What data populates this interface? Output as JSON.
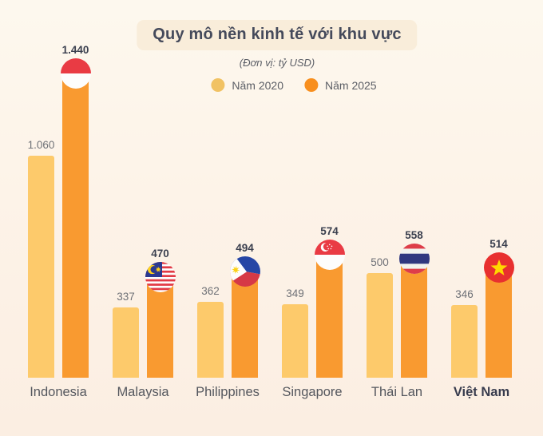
{
  "header": {
    "title": "Quy mô nền kinh tế với khu vực",
    "subtitle": "(Đơn vị: tỷ USD)"
  },
  "palette": {
    "background_top": "#fdf8ee",
    "background_bottom": "#fbeee2",
    "title_pill_bg": "#f9edda",
    "title_text": "#454a5b",
    "bar_2020": "#fdca6b",
    "bar_2025": "#f99a30",
    "legend_2020": "#f1c263",
    "legend_2025": "#f88f1e",
    "value_2020_text": "#6e7177",
    "value_2025_text": "#3a3f4e",
    "axis_label": "#54575e",
    "axis_label_highlight": "#383c4e"
  },
  "chart_data": {
    "type": "bar",
    "title": "Quy mô nền kinh tế với khu vực",
    "unit_label": "(Đơn vị: tỷ USD)",
    "categories": [
      "Indonesia",
      "Malaysia",
      "Philippines",
      "Singapore",
      "Thái Lan",
      "Việt Nam"
    ],
    "series": [
      {
        "name": "Năm 2020",
        "color": "#fdca6b",
        "values": [
          1060,
          337,
          362,
          349,
          500,
          346
        ],
        "labels": [
          "1.060",
          "337",
          "362",
          "349",
          "500",
          "346"
        ]
      },
      {
        "name": "Năm 2025",
        "color": "#f99a30",
        "values": [
          1440,
          470,
          494,
          574,
          558,
          514
        ],
        "labels": [
          "1.440",
          "470",
          "494",
          "574",
          "558",
          "514"
        ]
      }
    ],
    "flags": [
      "indonesia",
      "malaysia",
      "philippines",
      "singapore",
      "thailand",
      "vietnam"
    ],
    "highlight_category": "Việt Nam",
    "ylim": [
      0,
      1500
    ],
    "grid": false,
    "legend_position": "top"
  }
}
